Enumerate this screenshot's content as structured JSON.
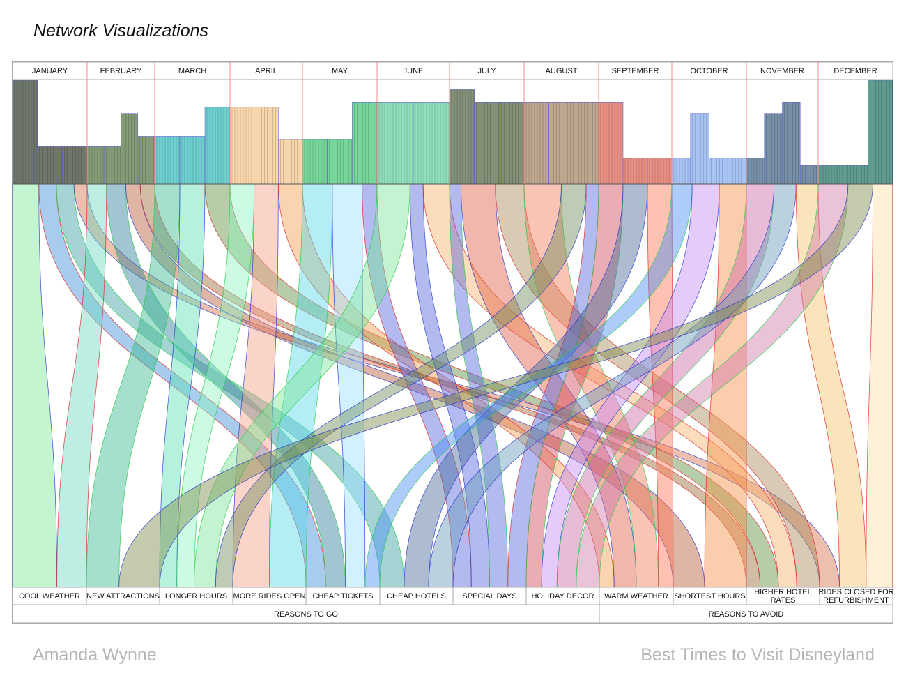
{
  "page": {
    "title": "Network Visualizations",
    "author": "Amanda Wynne",
    "project": "Best Times to Visit Disneyland"
  },
  "chart_data": {
    "type": "sankey",
    "title": "Best Times to Visit Disneyland",
    "months": [
      "JANUARY",
      "FEBRUARY",
      "MARCH",
      "APRIL",
      "MAY",
      "JUNE",
      "JULY",
      "AUGUST",
      "SEPTEMBER",
      "OCTOBER",
      "NOVEMBER",
      "DECEMBER"
    ],
    "crowd_level_segments": [
      {
        "month": "JANUARY",
        "levels": [
          10,
          3.6,
          3.6
        ]
      },
      {
        "month": "FEBRUARY",
        "levels": [
          3.6,
          3.6,
          6.8,
          4.6
        ]
      },
      {
        "month": "MARCH",
        "levels": [
          4.6,
          4.6,
          7.4
        ]
      },
      {
        "month": "APRIL",
        "levels": [
          7.4,
          7.4,
          4.3
        ]
      },
      {
        "month": "MAY",
        "levels": [
          4.3,
          4.3,
          7.9
        ]
      },
      {
        "month": "JUNE",
        "levels": [
          7.9,
          7.9
        ]
      },
      {
        "month": "JULY",
        "levels": [
          9.1,
          7.9,
          7.9
        ]
      },
      {
        "month": "AUGUST",
        "levels": [
          7.9,
          7.9,
          7.9
        ]
      },
      {
        "month": "SEPTEMBER",
        "levels": [
          7.9,
          2.5,
          2.5
        ]
      },
      {
        "month": "OCTOBER",
        "levels": [
          2.5,
          6.8,
          2.5,
          2.5
        ]
      },
      {
        "month": "NOVEMBER",
        "levels": [
          2.5,
          6.8,
          7.9,
          1.8
        ]
      },
      {
        "month": "DECEMBER",
        "levels": [
          1.8,
          1.8,
          10
        ]
      }
    ],
    "reasons_to_go": [
      "COOL WEATHER",
      "NEW ATTRACTIONS",
      "LONGER HOURS",
      "MORE  RIDES OPEN",
      "CHEAP TICKETS",
      "CHEAP HOTELS",
      "SPECIAL DAYS",
      "HOLIDAY DECOR"
    ],
    "reasons_to_avoid": [
      "WARM WEATHER",
      "SHORTEST HOURS",
      "HIGHER HOTEL RATES",
      "RIDES CLOSED FOR REFURBISHMENT"
    ],
    "group_labels": {
      "go": "REASONS TO GO",
      "avoid": "REASONS TO AVOID"
    },
    "links": [
      {
        "from": "JANUARY",
        "to": "COOL WEATHER",
        "weight": 3,
        "color": "#7de89a"
      },
      {
        "from": "JANUARY",
        "to": "CHEAP TICKETS",
        "weight": 2,
        "color": "#3f8fd6"
      },
      {
        "from": "JANUARY",
        "to": "CHEAP HOTELS",
        "weight": 2,
        "color": "#3aa0a0"
      },
      {
        "from": "JANUARY",
        "to": "RIDES CLOSED FOR REFURBISHMENT",
        "weight": 1.5,
        "color": "#d7704c"
      },
      {
        "from": "FEBRUARY",
        "to": "COOL WEATHER",
        "weight": 2,
        "color": "#6fd8c4"
      },
      {
        "from": "FEBRUARY",
        "to": "CHEAP TICKETS",
        "weight": 2,
        "color": "#2e7e9a"
      },
      {
        "from": "FEBRUARY",
        "to": "SHORTEST HOURS",
        "weight": 1.5,
        "color": "#b85a3a"
      },
      {
        "from": "FEBRUARY",
        "to": "HIGHER HOTEL RATES",
        "weight": 1.5,
        "color": "#9a6a3a"
      },
      {
        "from": "MARCH",
        "to": "NEW ATTRACTIONS",
        "weight": 2,
        "color": "#3ab890"
      },
      {
        "from": "MARCH",
        "to": "LONGER HOURS",
        "weight": 2,
        "color": "#5ee0b5"
      },
      {
        "from": "MARCH",
        "to": "HIGHER HOTEL RATES",
        "weight": 2,
        "color": "#5f8f3f"
      },
      {
        "from": "APRIL",
        "to": "LONGER HOURS",
        "weight": 2,
        "color": "#8ff5c2"
      },
      {
        "from": "APRIL",
        "to": "MORE  RIDES OPEN",
        "weight": 2,
        "color": "#f5a088"
      },
      {
        "from": "APRIL",
        "to": "WARM WEATHER",
        "weight": 2,
        "color": "#f59e52"
      },
      {
        "from": "MAY",
        "to": "MORE  RIDES OPEN",
        "weight": 2,
        "color": "#5ad8e8"
      },
      {
        "from": "MAY",
        "to": "CHEAP TICKETS",
        "weight": 2,
        "color": "#9ae0ff"
      },
      {
        "from": "MAY",
        "to": "SPECIAL DAYS",
        "weight": 1,
        "color": "#5566dd"
      },
      {
        "from": "JUNE",
        "to": "LONGER HOURS",
        "weight": 2.5,
        "color": "#7ae59a"
      },
      {
        "from": "JUNE",
        "to": "SPECIAL DAYS",
        "weight": 1,
        "color": "#5566dd"
      },
      {
        "from": "JUNE",
        "to": "HIGHER HOTEL RATES",
        "weight": 2,
        "color": "#f6b26b"
      },
      {
        "from": "JULY",
        "to": "SPECIAL DAYS",
        "weight": 1,
        "color": "#5566dd"
      },
      {
        "from": "JULY",
        "to": "WARM WEATHER",
        "weight": 3,
        "color": "#e0604a"
      },
      {
        "from": "JULY",
        "to": "HIGHER HOTEL RATES",
        "weight": 2.5,
        "color": "#a88a5a"
      },
      {
        "from": "AUGUST",
        "to": "WARM WEATHER",
        "weight": 3,
        "color": "#f57c5a"
      },
      {
        "from": "AUGUST",
        "to": "LONGER HOURS",
        "weight": 2,
        "color": "#6e8e5e"
      },
      {
        "from": "AUGUST",
        "to": "SPECIAL DAYS",
        "weight": 1,
        "color": "#5566dd"
      },
      {
        "from": "SEPTEMBER",
        "to": "HOLIDAY DECOR",
        "weight": 2,
        "color": "#d24a5a"
      },
      {
        "from": "SEPTEMBER",
        "to": "CHEAP HOTELS",
        "weight": 2,
        "color": "#4a6a9a"
      },
      {
        "from": "SEPTEMBER",
        "to": "WARM WEATHER",
        "weight": 2,
        "color": "#ff7755"
      },
      {
        "from": "OCTOBER",
        "to": "CHEAP TICKETS",
        "weight": 1.5,
        "color": "#4a8ef5"
      },
      {
        "from": "OCTOBER",
        "to": "HOLIDAY DECOR",
        "weight": 2,
        "color": "#c58cf5"
      },
      {
        "from": "OCTOBER",
        "to": "SHORTEST HOURS",
        "weight": 2,
        "color": "#f5904a"
      },
      {
        "from": "NOVEMBER",
        "to": "HOLIDAY DECOR",
        "weight": 2.5,
        "color": "#cc6aa8"
      },
      {
        "from": "NOVEMBER",
        "to": "CHEAP HOTELS",
        "weight": 2,
        "color": "#6a9ab8"
      },
      {
        "from": "NOVEMBER",
        "to": "RIDES CLOSED FOR REFURBISHMENT",
        "weight": 2,
        "color": "#f5c36a"
      },
      {
        "from": "DECEMBER",
        "to": "HOLIDAY DECOR",
        "weight": 3,
        "color": "#d07aaa"
      },
      {
        "from": "DECEMBER",
        "to": "NEW ATTRACTIONS",
        "weight": 2.5,
        "color": "#7a8a4a"
      },
      {
        "from": "DECEMBER",
        "to": "RIDES CLOSED FOR REFURBISHMENT",
        "weight": 2,
        "color": "#fde0a8"
      }
    ],
    "month_colors": [
      "#3f4a3a",
      "#5a7a4a",
      "#3ec0c0",
      "#f5c890",
      "#4ac878",
      "#6ad4a4",
      "#5a6a4a",
      "#a88a6a",
      "#e06a5a",
      "#8ab0f0",
      "#4a6a8a",
      "#2a7a6a"
    ],
    "grid": false,
    "legend": "none"
  }
}
